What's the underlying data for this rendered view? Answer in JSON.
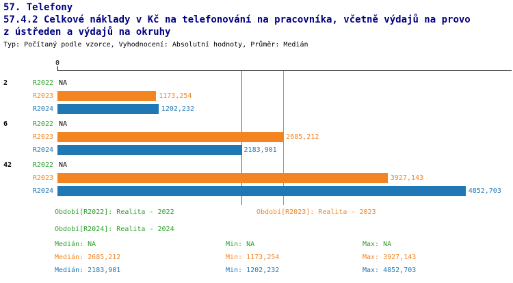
{
  "header": {
    "title1": "57. Telefony",
    "title2": "57.4.2 Celkové náklady v Kč na telefonování na pracovníka, včetně výdajů na provo",
    "title3": "z ústředen a výdajů na okruhy",
    "subtitle": "Typ: Počítaný podle vzorce, Vyhodnocení: Absolutní hodnoty, Průměr: Medián"
  },
  "chart_data": {
    "type": "bar",
    "orientation": "horizontal",
    "title_lines": [
      "57. Telefony",
      "57.4.2 Celkové náklady v Kč na telefonování na pracovníka, včetně výdajů na provo",
      "z ústředen a výdajů na okruhy"
    ],
    "subtitle": "Typ: Počítaný podle vzorce, Vyhodnocení: Absolutní hodnoty, Průměr: Medián",
    "xlim": [
      0,
      5400
    ],
    "grid": false,
    "axis": {
      "zero_label": "0"
    },
    "series_colors": {
      "R2022": "#2CA02C",
      "R2023": "#F28522",
      "R2024": "#1F77B4"
    },
    "groups": [
      {
        "label": "2",
        "rows": [
          {
            "series": "R2022",
            "value": null,
            "display": "NA"
          },
          {
            "series": "R2023",
            "value": 1173.254,
            "display": "1173,254"
          },
          {
            "series": "R2024",
            "value": 1202.232,
            "display": "1202,232"
          }
        ]
      },
      {
        "label": "6",
        "rows": [
          {
            "series": "R2022",
            "value": null,
            "display": "NA"
          },
          {
            "series": "R2023",
            "value": 2685.212,
            "display": "2685,212"
          },
          {
            "series": "R2024",
            "value": 2183.901,
            "display": "2183,901"
          }
        ]
      },
      {
        "label": "42",
        "rows": [
          {
            "series": "R2022",
            "value": null,
            "display": "NA"
          },
          {
            "series": "R2023",
            "value": 3927.143,
            "display": "3927,143"
          },
          {
            "series": "R2024",
            "value": 4852.703,
            "display": "4852,703"
          }
        ]
      }
    ],
    "reference_lines": [
      {
        "series": "R2024",
        "value": 2183.901,
        "color": "#1F77B4"
      },
      {
        "series": "R2023",
        "value": 2685.212,
        "color": "#F28522"
      }
    ]
  },
  "legend": {
    "items": [
      {
        "label": "Období[R2022]: Realita - 2022",
        "color": "#2CA02C"
      },
      {
        "label": "Období[R2023]: Realita - 2023",
        "color": "#F28522"
      },
      {
        "label": "Období[R2024]: Realita - 2024",
        "color": "#2CA02C"
      }
    ]
  },
  "stats": {
    "rows": [
      {
        "median": "Medián: NA",
        "min": "Min: NA",
        "max": "Max: NA",
        "color": "#2CA02C"
      },
      {
        "median": "Medián: 2685,212",
        "min": "Min: 1173,254",
        "max": "Max: 3927,143",
        "color": "#F28522"
      },
      {
        "median": "Medián: 2183,901",
        "min": "Min: 1202,232",
        "max": "Max: 4852,703",
        "color": "#1F77B4"
      }
    ]
  }
}
